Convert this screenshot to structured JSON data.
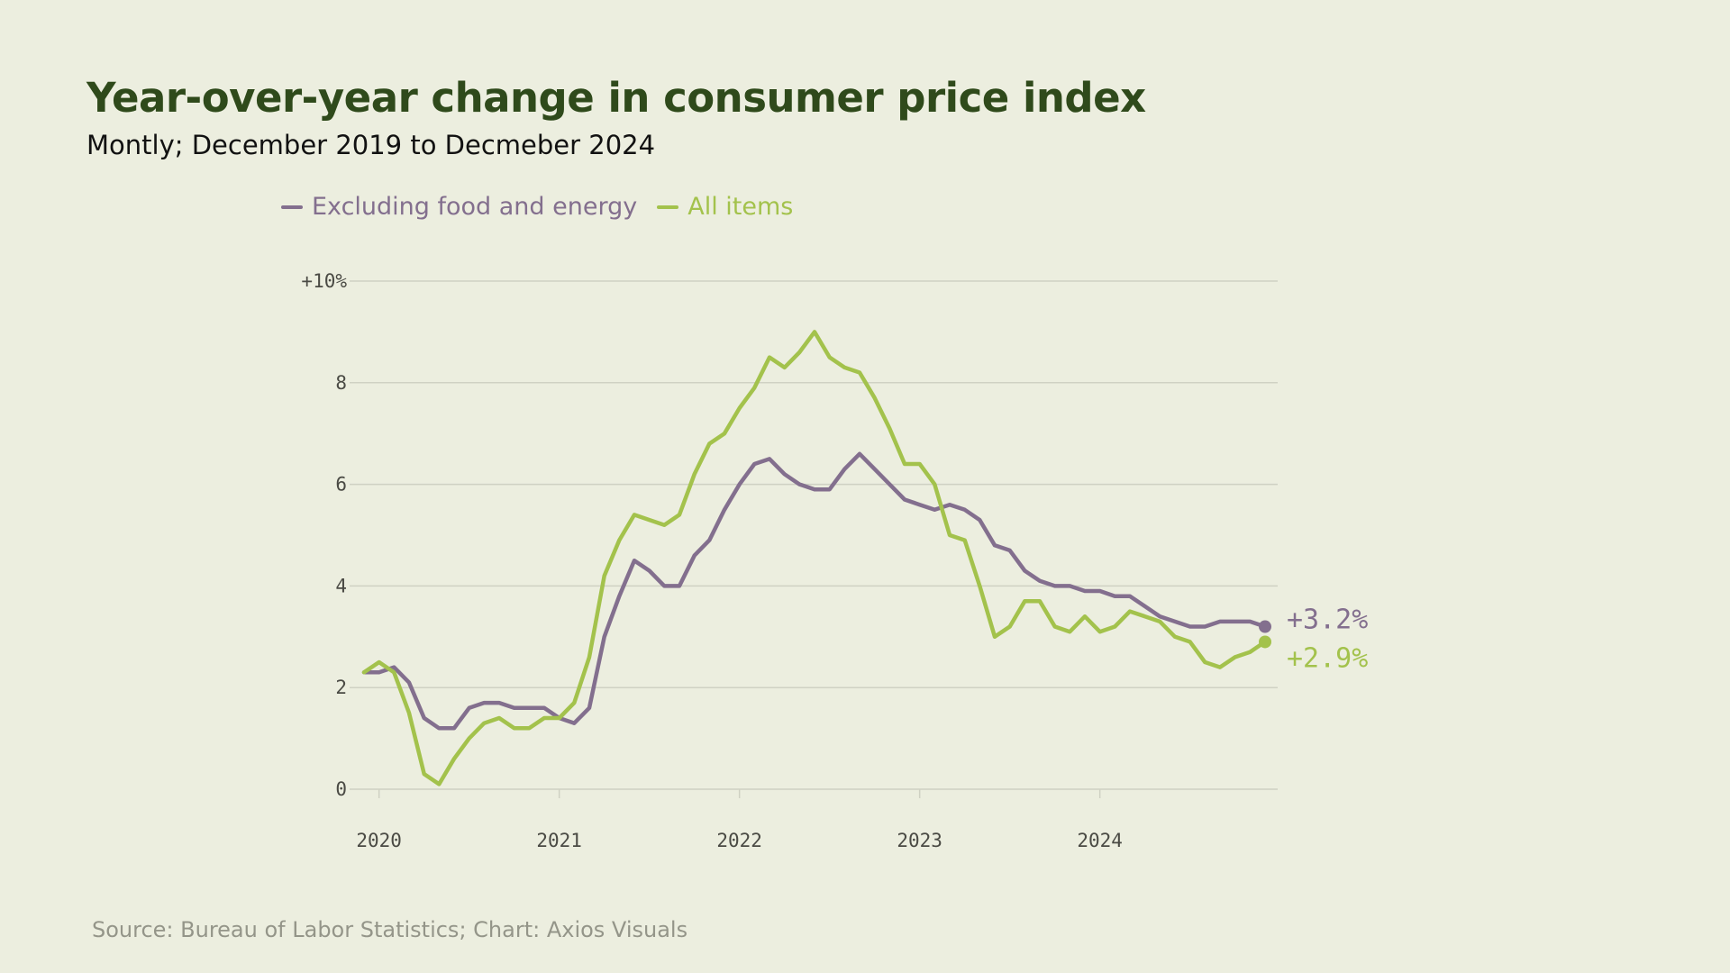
{
  "title": "Year-over-year change in consumer price index",
  "subtitle": "Montly; December 2019 to Decmeber 2024",
  "source": "Source:  Bureau of Labor Statistics; Chart: Axios Visuals",
  "colors": {
    "background": "#eceedf",
    "title": "#2f4a1b",
    "core": "#836f8e",
    "all_items": "#a3c24c",
    "grid": "#cfd1c3"
  },
  "chart_data": {
    "type": "line",
    "x_tick_labels": [
      "2020",
      "2021",
      "2022",
      "2023",
      "2024"
    ],
    "y_tick_labels": [
      "0",
      "2",
      "4",
      "6",
      "8",
      "+10%"
    ],
    "y_ticks": [
      0,
      2,
      4,
      6,
      8,
      10
    ],
    "ylim": [
      0,
      10
    ],
    "x_range": [
      "2019-12",
      "2024-12"
    ],
    "grid": "horizontal",
    "legend_position": "top-left",
    "x": [
      "2019-12",
      "2020-01",
      "2020-02",
      "2020-03",
      "2020-04",
      "2020-05",
      "2020-06",
      "2020-07",
      "2020-08",
      "2020-09",
      "2020-10",
      "2020-11",
      "2020-12",
      "2021-01",
      "2021-02",
      "2021-03",
      "2021-04",
      "2021-05",
      "2021-06",
      "2021-07",
      "2021-08",
      "2021-09",
      "2021-10",
      "2021-11",
      "2021-12",
      "2022-01",
      "2022-02",
      "2022-03",
      "2022-04",
      "2022-05",
      "2022-06",
      "2022-07",
      "2022-08",
      "2022-09",
      "2022-10",
      "2022-11",
      "2022-12",
      "2023-01",
      "2023-02",
      "2023-03",
      "2023-04",
      "2023-05",
      "2023-06",
      "2023-07",
      "2023-08",
      "2023-09",
      "2023-10",
      "2023-11",
      "2023-12",
      "2024-01",
      "2024-02",
      "2024-03",
      "2024-04",
      "2024-05",
      "2024-06",
      "2024-07",
      "2024-08",
      "2024-09",
      "2024-10",
      "2024-11",
      "2024-12"
    ],
    "series": [
      {
        "name": "Excluding food and energy",
        "color": "#836f8e",
        "end_label": "+3.2%",
        "values": [
          2.3,
          2.3,
          2.4,
          2.1,
          1.4,
          1.2,
          1.2,
          1.6,
          1.7,
          1.7,
          1.6,
          1.6,
          1.6,
          1.4,
          1.3,
          1.6,
          3.0,
          3.8,
          4.5,
          4.3,
          4.0,
          4.0,
          4.6,
          4.9,
          5.5,
          6.0,
          6.4,
          6.5,
          6.2,
          6.0,
          5.9,
          5.9,
          6.3,
          6.6,
          6.3,
          6.0,
          5.7,
          5.6,
          5.5,
          5.6,
          5.5,
          5.3,
          4.8,
          4.7,
          4.3,
          4.1,
          4.0,
          4.0,
          3.9,
          3.9,
          3.8,
          3.8,
          3.6,
          3.4,
          3.3,
          3.2,
          3.2,
          3.3,
          3.3,
          3.3,
          3.2
        ]
      },
      {
        "name": "All items",
        "color": "#a3c24c",
        "end_label": "+2.9%",
        "values": [
          2.3,
          2.5,
          2.3,
          1.5,
          0.3,
          0.1,
          0.6,
          1.0,
          1.3,
          1.4,
          1.2,
          1.2,
          1.4,
          1.4,
          1.7,
          2.6,
          4.2,
          4.9,
          5.4,
          5.3,
          5.2,
          5.4,
          6.2,
          6.8,
          7.0,
          7.5,
          7.9,
          8.5,
          8.3,
          8.6,
          9.0,
          8.5,
          8.3,
          8.2,
          7.7,
          7.1,
          6.4,
          6.4,
          6.0,
          5.0,
          4.9,
          4.0,
          3.0,
          3.2,
          3.7,
          3.7,
          3.2,
          3.1,
          3.4,
          3.1,
          3.2,
          3.5,
          3.4,
          3.3,
          3.0,
          2.9,
          2.5,
          2.4,
          2.6,
          2.7,
          2.9
        ]
      }
    ]
  }
}
